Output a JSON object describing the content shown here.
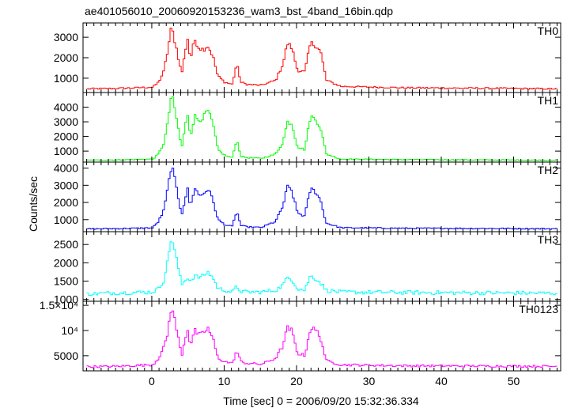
{
  "chart_data": {
    "type": "line",
    "title": "ae401056010_20060920153236_wam3_bst_4band_16bin.qdp",
    "xlabel": "Time [sec] 0 = 2006/09/20 15:32:36.334",
    "ylabel": "Counts/sec",
    "xlim": [
      -9.5,
      56.5
    ],
    "x_ticks": [
      0,
      10,
      20,
      30,
      40,
      50
    ],
    "x_tick_labels": [
      "0",
      "10",
      "20",
      "30",
      "40",
      "50"
    ],
    "grid": false,
    "legend": "none",
    "panels": [
      {
        "name": "TH0",
        "color": "#ff0000",
        "ylim": [
          300,
          3700
        ],
        "y_ticks": [
          1000,
          2000,
          3000
        ],
        "y_tick_labels": [
          "1000",
          "2000",
          "3000"
        ],
        "baseline": 500,
        "x": [
          -9,
          -5,
          0,
          0.8,
          1.5,
          2.0,
          2.6,
          3.2,
          4.0,
          4.8,
          5.2,
          5.8,
          6.4,
          7.0,
          7.6,
          8.3,
          9.0,
          10.0,
          11.0,
          11.6,
          12.2,
          13.0,
          15.0,
          17.0,
          18.0,
          18.6,
          19.2,
          20.0,
          21.0,
          21.8,
          22.6,
          23.2,
          24.0,
          26.0,
          35.0,
          45.0,
          56.0
        ],
        "y": [
          480,
          500,
          560,
          800,
          1300,
          2200,
          3500,
          2600,
          1200,
          3000,
          1900,
          2900,
          2500,
          2400,
          2600,
          2100,
          1100,
          800,
          700,
          1700,
          800,
          700,
          650,
          900,
          1700,
          2700,
          2500,
          1400,
          1300,
          2700,
          2600,
          2300,
          900,
          600,
          530,
          510,
          480
        ]
      },
      {
        "name": "TH1",
        "color": "#00ff00",
        "ylim": [
          250,
          5000
        ],
        "y_ticks": [
          1000,
          2000,
          3000,
          4000
        ],
        "y_tick_labels": [
          "1000",
          "2000",
          "3000",
          "4000"
        ],
        "baseline": 400,
        "x": [
          -9,
          -5,
          0,
          0.8,
          1.5,
          2.0,
          2.6,
          3.2,
          4.0,
          4.8,
          5.2,
          5.8,
          6.4,
          7.0,
          7.6,
          8.3,
          9.0,
          10.0,
          11.0,
          11.6,
          12.2,
          13.0,
          15.0,
          17.0,
          18.0,
          18.6,
          19.2,
          20.0,
          21.0,
          21.8,
          22.6,
          23.2,
          24.0,
          26.0,
          35.0,
          45.0,
          56.0
        ],
        "y": [
          380,
          400,
          450,
          800,
          1500,
          2700,
          4900,
          3500,
          1200,
          3600,
          2000,
          3400,
          3100,
          3300,
          3800,
          2900,
          1100,
          700,
          550,
          1800,
          650,
          550,
          500,
          800,
          1600,
          3000,
          2900,
          1300,
          1100,
          3400,
          3100,
          2600,
          800,
          450,
          420,
          400,
          380
        ]
      },
      {
        "name": "TH2",
        "color": "#0000ff",
        "ylim": [
          300,
          4350
        ],
        "y_ticks": [
          1000,
          2000,
          3000,
          4000
        ],
        "y_tick_labels": [
          "1000",
          "2000",
          "3000",
          "4000"
        ],
        "baseline": 480,
        "x": [
          -9,
          -5,
          0,
          0.8,
          1.5,
          2.0,
          2.6,
          3.2,
          4.0,
          4.8,
          5.2,
          5.8,
          6.4,
          7.0,
          7.6,
          8.3,
          9.0,
          10.0,
          11.0,
          11.6,
          12.2,
          13.0,
          15.0,
          17.0,
          18.0,
          18.6,
          19.2,
          20.0,
          21.0,
          21.8,
          22.6,
          23.2,
          24.0,
          26.0,
          35.0,
          45.0,
          56.0
        ],
        "y": [
          460,
          480,
          520,
          900,
          1500,
          2600,
          4200,
          3000,
          1300,
          2800,
          1700,
          2900,
          2400,
          2500,
          2800,
          2200,
          1000,
          700,
          600,
          1500,
          650,
          580,
          540,
          900,
          1800,
          2900,
          2700,
          1400,
          1200,
          2800,
          2600,
          2100,
          800,
          530,
          500,
          490,
          470
        ]
      },
      {
        "name": "TH3",
        "color": "#00ffff",
        "ylim": [
          950,
          2850
        ],
        "y_ticks": [
          1000,
          1500,
          2000,
          2500
        ],
        "y_tick_labels": [
          "1000",
          "1500",
          "2000",
          "2500"
        ],
        "baseline": 1180,
        "x": [
          -9,
          -5,
          0,
          0.8,
          1.5,
          2.0,
          2.6,
          3.2,
          4.0,
          4.8,
          5.2,
          5.8,
          6.4,
          7.0,
          7.6,
          8.3,
          9.0,
          10.0,
          11.0,
          11.6,
          12.2,
          13.0,
          15.0,
          17.0,
          18.0,
          18.6,
          19.2,
          20.0,
          21.0,
          21.8,
          22.6,
          23.2,
          24.0,
          26.0,
          35.0,
          45.0,
          56.0
        ],
        "y": [
          1150,
          1180,
          1200,
          1300,
          1500,
          2000,
          2700,
          2200,
          1400,
          1600,
          1500,
          1650,
          1600,
          1650,
          1750,
          1600,
          1300,
          1250,
          1200,
          1350,
          1220,
          1200,
          1200,
          1250,
          1400,
          1600,
          1550,
          1300,
          1250,
          1650,
          1550,
          1450,
          1250,
          1200,
          1190,
          1180,
          1170
        ]
      },
      {
        "name": "TH0123",
        "color": "#ff00ff",
        "ylim": [
          2000,
          15800
        ],
        "y_ticks": [
          5000,
          10000,
          15000
        ],
        "y_tick_labels": [
          "5000",
          "10⁴",
          "1.5×10⁴"
        ],
        "baseline": 2900,
        "x": [
          -9,
          -5,
          0,
          0.8,
          1.5,
          2.0,
          2.6,
          3.2,
          4.0,
          4.8,
          5.2,
          5.8,
          6.4,
          7.0,
          7.6,
          8.3,
          9.0,
          10.0,
          11.0,
          11.6,
          12.2,
          13.0,
          15.0,
          17.0,
          18.0,
          18.6,
          19.2,
          20.0,
          21.0,
          21.8,
          22.6,
          23.2,
          24.0,
          26.0,
          35.0,
          45.0,
          56.0
        ],
        "y": [
          2800,
          2900,
          3200,
          4500,
          6500,
          9000,
          15000,
          11000,
          5000,
          10500,
          7000,
          10000,
          9000,
          9500,
          10500,
          8500,
          4500,
          3800,
          3500,
          6000,
          3800,
          3500,
          3300,
          4500,
          7000,
          10500,
          10000,
          5500,
          5000,
          10500,
          10000,
          8500,
          4000,
          3200,
          3000,
          2950,
          2900
        ]
      }
    ]
  }
}
